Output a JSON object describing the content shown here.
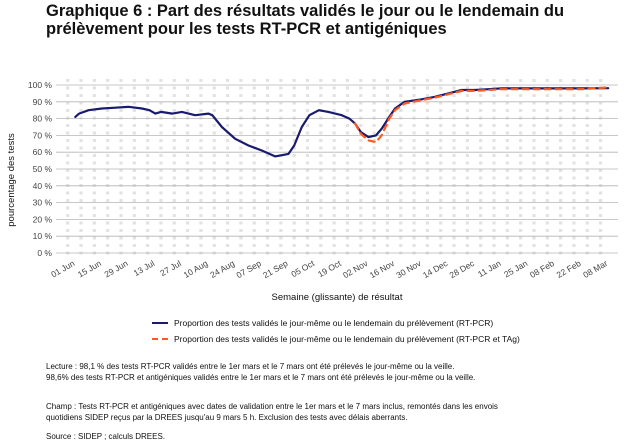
{
  "title_line1": "Graphique 6 : Part des résultats validés le jour ou le lendemain du",
  "title_line2": "prélèvement pour les tests RT-PCR et antigéniques",
  "chart_data": {
    "type": "line",
    "ylabel": "pourcentage des tests",
    "xlabel": "Semaine (glissante) de résultat",
    "ylim": [
      0,
      100
    ],
    "y_ticks": [
      "0 %",
      "10 %",
      "20 %",
      "30 %",
      "40 %",
      "50 %",
      "60 %",
      "70 %",
      "80 %",
      "90 %",
      "100 %"
    ],
    "x_ticks": [
      "01 Jun",
      "15 Jun",
      "29 Jun",
      "13 Jul",
      "27 Jul",
      "10 Aug",
      "24 Aug",
      "07 Sep",
      "21 Sep",
      "05 Oct",
      "19 Oct",
      "02 Nov",
      "16 Nov",
      "30 Nov",
      "14 Dec",
      "28 Dec",
      "11 Jan",
      "25 Jan",
      "08 Feb",
      "22 Feb",
      "08 Mar"
    ],
    "grid": true,
    "series": [
      {
        "name": "Proportion des tests validés le jour-même ou le lendemain du prélèvement (RT-PCR)",
        "color": "#1a1a6e",
        "style": "solid",
        "points": [
          [
            "2020-06-01",
            81
          ],
          [
            "2020-06-03",
            83
          ],
          [
            "2020-06-08",
            85
          ],
          [
            "2020-06-15",
            86
          ],
          [
            "2020-06-22",
            86.5
          ],
          [
            "2020-06-29",
            87
          ],
          [
            "2020-07-06",
            86
          ],
          [
            "2020-07-10",
            85
          ],
          [
            "2020-07-13",
            83
          ],
          [
            "2020-07-16",
            84
          ],
          [
            "2020-07-22",
            83
          ],
          [
            "2020-07-27",
            84
          ],
          [
            "2020-08-03",
            82
          ],
          [
            "2020-08-10",
            83
          ],
          [
            "2020-08-12",
            82
          ],
          [
            "2020-08-17",
            75
          ],
          [
            "2020-08-24",
            68
          ],
          [
            "2020-08-31",
            64
          ],
          [
            "2020-09-07",
            61
          ],
          [
            "2020-09-14",
            57.5
          ],
          [
            "2020-09-21",
            59
          ],
          [
            "2020-09-24",
            64
          ],
          [
            "2020-09-28",
            75
          ],
          [
            "2020-10-02",
            82
          ],
          [
            "2020-10-07",
            85
          ],
          [
            "2020-10-12",
            84
          ],
          [
            "2020-10-19",
            82
          ],
          [
            "2020-10-23",
            80
          ],
          [
            "2020-10-26",
            77
          ],
          [
            "2020-10-29",
            72
          ],
          [
            "2020-11-02",
            69
          ],
          [
            "2020-11-06",
            70
          ],
          [
            "2020-11-09",
            74
          ],
          [
            "2020-11-13",
            81
          ],
          [
            "2020-11-16",
            86
          ],
          [
            "2020-11-21",
            90
          ],
          [
            "2020-11-30",
            91.5
          ],
          [
            "2020-12-07",
            93
          ],
          [
            "2020-12-14",
            95
          ],
          [
            "2020-12-21",
            97
          ],
          [
            "2020-12-28",
            97
          ],
          [
            "2021-01-04",
            97.5
          ],
          [
            "2021-01-11",
            98
          ],
          [
            "2021-01-25",
            98
          ],
          [
            "2021-02-08",
            98
          ],
          [
            "2021-02-22",
            98
          ],
          [
            "2021-03-08",
            98.1
          ]
        ]
      },
      {
        "name": "Proportion des tests validés le jour-même ou le lendemain du prélèvement (RT-PCR et TAg)",
        "color": "#ff5a1f",
        "style": "dashed",
        "points": [
          [
            "2020-10-26",
            77
          ],
          [
            "2020-10-29",
            71
          ],
          [
            "2020-11-02",
            67
          ],
          [
            "2020-11-06",
            66
          ],
          [
            "2020-11-09",
            70
          ],
          [
            "2020-11-13",
            80
          ],
          [
            "2020-11-16",
            85
          ],
          [
            "2020-11-21",
            89
          ],
          [
            "2020-11-30",
            91
          ],
          [
            "2020-12-07",
            92.5
          ],
          [
            "2020-12-14",
            94.5
          ],
          [
            "2020-12-21",
            96.5
          ],
          [
            "2020-12-28",
            96.5
          ],
          [
            "2021-01-04",
            97
          ],
          [
            "2021-01-11",
            97.5
          ],
          [
            "2021-01-25",
            97.5
          ],
          [
            "2021-02-08",
            97.5
          ],
          [
            "2021-02-22",
            97.5
          ],
          [
            "2021-03-08",
            98.6
          ]
        ]
      }
    ]
  },
  "legend": {
    "item1": "Proportion des tests validés le jour-même ou le lendemain du prélèvement (RT-PCR)",
    "item2": "Proportion des tests validés le jour-même ou le lendemain du prélèvement (RT-PCR et TAg)"
  },
  "notes": {
    "lecture1": "Lecture : 98,1 % des tests RT-PCR validés entre le 1er mars et le 7 mars ont été prélevés le jour-même ou la veille.",
    "lecture2": "98,6% des tests RT-PCR et antigéniques validés entre le 1er mars et le 7 mars ont été prélevés le jour-même ou la veille.",
    "champ1": "Champ : Tests RT-PCR et antigéniques avec dates de validation entre le 1er mars et le 7 mars inclus, remontés dans les envois",
    "champ2": "quotidiens SIDEP reçus par la DREES jusqu'au 9 mars 5 h. Exclusion des tests avec délais aberrants.",
    "source": "Source : SIDEP ; calculs DREES."
  }
}
